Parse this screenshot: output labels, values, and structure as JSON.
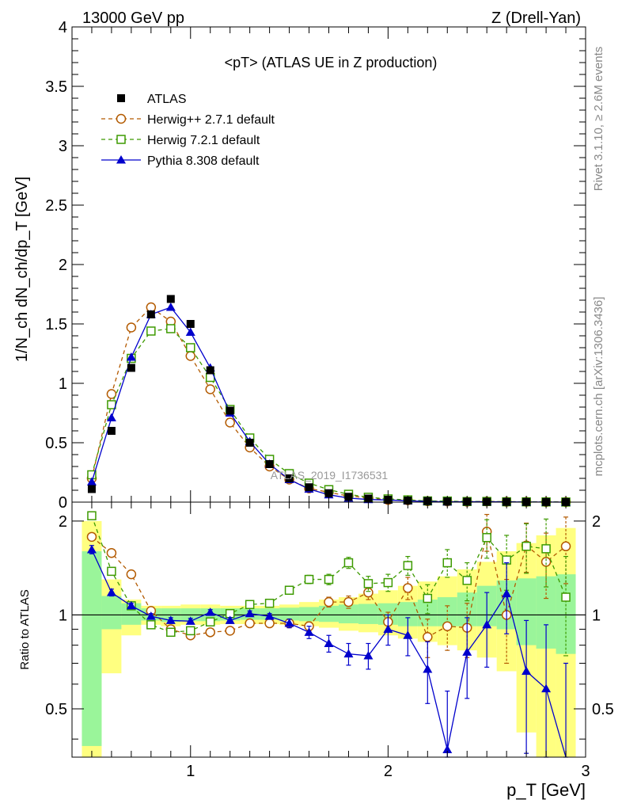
{
  "header": {
    "left": "13000 GeV pp",
    "right": "Z (Drell-Yan)"
  },
  "side_labels": {
    "rivet": "Rivet 3.1.10, ≥ 2.6M events",
    "mcplots": "mcplots.cern.ch [arXiv:1306.3436]"
  },
  "watermark": "ATLAS_2019_I1736531",
  "colors": {
    "atlas": "#000000",
    "herwigpp": "#b35a00",
    "herwig7": "#3d9a00",
    "pythia": "#0000cc",
    "band_inner": "#9af59a",
    "band_outer": "#ffff80"
  },
  "chart_data": [
    {
      "type": "line",
      "title": "<pT> (ATLAS UE in Z production)",
      "xlabel": "p_T [GeV]",
      "ylabel": "1/N_ch dN_ch/dp_T [GeV]",
      "xlim": [
        0.4,
        3.0
      ],
      "ylim": [
        0,
        4
      ],
      "yticks": [
        "0",
        "0.5",
        "1",
        "1.5",
        "2",
        "2.5",
        "3",
        "3.5",
        "4"
      ],
      "grid": false,
      "legend_position": "top-left",
      "x": [
        0.5,
        0.6,
        0.7,
        0.8,
        0.9,
        1.0,
        1.1,
        1.2,
        1.3,
        1.4,
        1.5,
        1.6,
        1.7,
        1.8,
        1.9,
        2.0,
        2.1,
        2.2,
        2.3,
        2.4,
        2.5,
        2.6,
        2.7,
        2.8,
        2.9
      ],
      "series": [
        {
          "name": "ATLAS",
          "marker": "square-filled",
          "values": [
            0.11,
            0.6,
            1.13,
            1.58,
            1.71,
            1.5,
            1.11,
            0.77,
            0.5,
            0.32,
            0.2,
            0.125,
            0.075,
            0.045,
            0.03,
            0.02,
            0.013,
            0.009,
            0.006,
            0.004,
            0.003,
            0.002,
            0.0015,
            0.001,
            0.0008
          ]
        },
        {
          "name": "Herwig++ 2.7.1 default",
          "marker": "circle-open",
          "values": [
            0.2,
            0.91,
            1.47,
            1.64,
            1.52,
            1.23,
            0.95,
            0.67,
            0.46,
            0.3,
            0.19,
            0.115,
            0.083,
            0.051,
            0.036,
            0.019,
            0.016,
            0.008,
            0.006,
            0.004,
            0.006,
            0.003,
            0.0025,
            0.0015,
            0.0013
          ]
        },
        {
          "name": "Herwig 7.2.1 default",
          "marker": "square-open",
          "values": [
            0.23,
            0.82,
            1.21,
            1.44,
            1.46,
            1.3,
            1.05,
            0.78,
            0.54,
            0.36,
            0.24,
            0.16,
            0.105,
            0.066,
            0.041,
            0.027,
            0.019,
            0.01,
            0.009,
            0.005,
            0.0054,
            0.003,
            0.0025,
            0.0016,
            0.0009
          ]
        },
        {
          "name": "Pythia 8.308 default",
          "marker": "triangle-filled",
          "values": [
            0.17,
            0.71,
            1.22,
            1.58,
            1.64,
            1.43,
            1.13,
            0.75,
            0.51,
            0.32,
            0.19,
            0.11,
            0.062,
            0.034,
            0.022,
            0.018,
            0.011,
            0.006,
            0.002,
            0.003,
            0.0028,
            0.0024,
            0.001,
            0.0006,
            0.0002
          ]
        }
      ]
    },
    {
      "type": "line",
      "xlabel": "p_T [GeV]",
      "ylabel": "Ratio to ATLAS",
      "xlim": [
        0.4,
        3.0
      ],
      "ylim": [
        0.35,
        2.3
      ],
      "yscale": "log",
      "xticks": [
        "1",
        "2",
        "3"
      ],
      "yticks": [
        "0.5",
        "1",
        "2"
      ],
      "reference_line": 1,
      "x": [
        0.5,
        0.6,
        0.7,
        0.8,
        0.9,
        1.0,
        1.1,
        1.2,
        1.3,
        1.4,
        1.5,
        1.6,
        1.7,
        1.8,
        1.9,
        2.0,
        2.1,
        2.2,
        2.3,
        2.4,
        2.5,
        2.6,
        2.7,
        2.8,
        2.9
      ],
      "bands": {
        "inner": {
          "lo": [
            0.38,
            0.9,
            0.93,
            0.96,
            0.95,
            0.955,
            0.955,
            0.96,
            0.965,
            0.965,
            0.96,
            0.955,
            0.95,
            0.94,
            0.935,
            0.93,
            0.92,
            0.92,
            0.92,
            0.92,
            0.92,
            0.9,
            0.8,
            0.78,
            0.75
          ],
          "hi": [
            1.6,
            1.15,
            1.09,
            1.05,
            1.05,
            1.05,
            1.05,
            1.05,
            1.05,
            1.05,
            1.055,
            1.06,
            1.07,
            1.08,
            1.085,
            1.09,
            1.1,
            1.12,
            1.14,
            1.18,
            1.24,
            1.29,
            1.31,
            1.33,
            1.35
          ]
        },
        "outer": {
          "lo": [
            0.35,
            0.65,
            0.86,
            0.93,
            0.92,
            0.93,
            0.93,
            0.935,
            0.935,
            0.935,
            0.93,
            0.92,
            0.91,
            0.89,
            0.88,
            0.86,
            0.84,
            0.82,
            0.8,
            0.77,
            0.73,
            0.66,
            0.42,
            0.35,
            0.35
          ],
          "hi": [
            2.0,
            1.3,
            1.12,
            1.07,
            1.07,
            1.08,
            1.08,
            1.07,
            1.07,
            1.07,
            1.08,
            1.1,
            1.12,
            1.14,
            1.17,
            1.2,
            1.24,
            1.28,
            1.33,
            1.4,
            1.48,
            1.6,
            1.7,
            1.8,
            1.9
          ]
        }
      },
      "series": [
        {
          "name": "Herwig++ 2.7.1 default",
          "marker": "circle-open",
          "values": [
            1.78,
            1.58,
            1.35,
            1.03,
            0.9,
            0.86,
            0.88,
            0.89,
            0.94,
            0.94,
            0.94,
            0.92,
            1.1,
            1.1,
            1.18,
            0.95,
            1.22,
            0.85,
            0.92,
            0.91,
            1.85,
            1.0,
            1.67,
            1.48,
            1.66
          ],
          "err": [
            0.05,
            0.03,
            0.02,
            0.02,
            0.02,
            0.02,
            0.02,
            0.02,
            0.02,
            0.02,
            0.03,
            0.03,
            0.04,
            0.05,
            0.06,
            0.07,
            0.1,
            0.12,
            0.15,
            0.18,
            0.25,
            0.3,
            0.3,
            0.35,
            0.4
          ]
        },
        {
          "name": "Herwig 7.2.1 default",
          "marker": "square-open",
          "values": [
            2.08,
            1.38,
            1.07,
            0.93,
            0.88,
            0.89,
            0.95,
            1.01,
            1.08,
            1.09,
            1.2,
            1.3,
            1.3,
            1.47,
            1.26,
            1.27,
            1.44,
            1.13,
            1.47,
            1.29,
            1.77,
            1.5,
            1.66,
            1.63,
            1.14
          ],
          "err": [
            0.05,
            0.03,
            0.02,
            0.02,
            0.02,
            0.02,
            0.02,
            0.02,
            0.02,
            0.02,
            0.03,
            0.04,
            0.05,
            0.06,
            0.07,
            0.08,
            0.1,
            0.12,
            0.15,
            0.18,
            0.25,
            0.3,
            0.3,
            0.4,
            0.4
          ]
        },
        {
          "name": "Pythia 8.308 default",
          "marker": "triangle-filled",
          "values": [
            1.62,
            1.18,
            1.07,
            0.99,
            0.96,
            0.955,
            1.02,
            0.96,
            1.01,
            0.99,
            0.94,
            0.88,
            0.81,
            0.75,
            0.74,
            0.9,
            0.86,
            0.67,
            0.37,
            0.76,
            0.93,
            1.17,
            0.66,
            0.58,
            0.3
          ],
          "err": [
            0.05,
            0.03,
            0.02,
            0.02,
            0.02,
            0.02,
            0.02,
            0.02,
            0.02,
            0.02,
            0.03,
            0.04,
            0.05,
            0.06,
            0.07,
            0.1,
            0.12,
            0.15,
            0.2,
            0.22,
            0.25,
            0.3,
            0.3,
            0.35,
            0.4
          ]
        }
      ]
    }
  ]
}
